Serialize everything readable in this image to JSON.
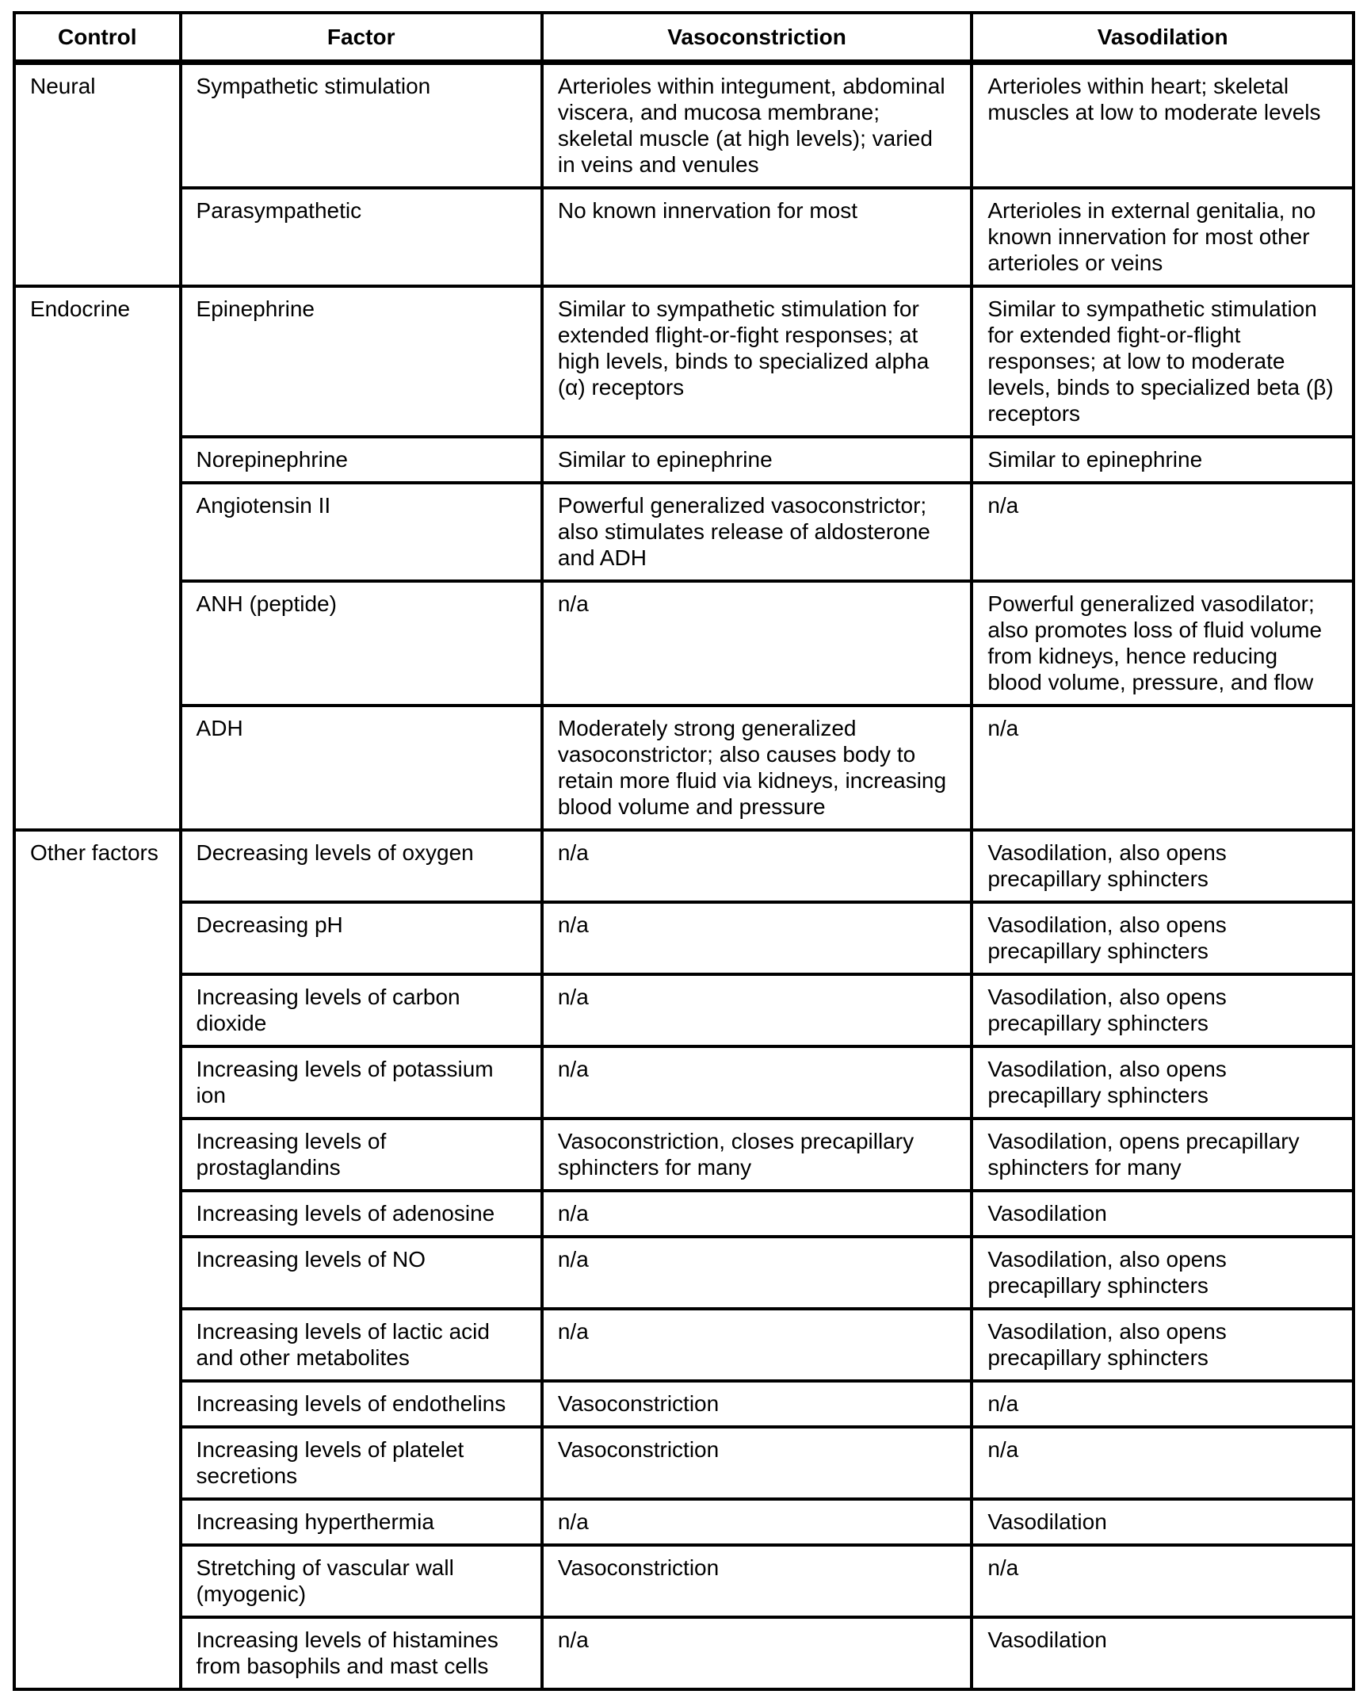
{
  "table": {
    "headers": [
      "Control",
      "Factor",
      "Vasoconstriction",
      "Vasodilation"
    ],
    "groups": [
      {
        "control": "Neural",
        "rows": [
          {
            "factor": "Sympathetic stimulation",
            "vasoconstriction": "Arterioles within integument, abdominal viscera, and mucosa membrane; skeletal muscle (at high levels); varied in veins and venules",
            "vasodilation": "Arterioles within heart; skeletal muscles at low to moderate levels"
          },
          {
            "factor": "Parasympathetic",
            "vasoconstriction": "No known innervation for most",
            "vasodilation": "Arterioles in external genitalia, no known innervation for most other arterioles or veins"
          }
        ]
      },
      {
        "control": "Endocrine",
        "rows": [
          {
            "factor": "Epinephrine",
            "vasoconstriction": "Similar to sympathetic stimulation for extended flight-or-fight responses; at high levels, binds to specialized alpha (α) receptors",
            "vasodilation": "Similar to sympathetic stimulation for extended fight-or-flight responses; at low to moderate levels, binds to specialized beta (β) receptors"
          },
          {
            "factor": "Norepinephrine",
            "vasoconstriction": "Similar to epinephrine",
            "vasodilation": "Similar to epinephrine"
          },
          {
            "factor": "Angiotensin II",
            "vasoconstriction": "Powerful generalized vasoconstrictor; also stimulates release of aldosterone and ADH",
            "vasodilation": "n/a"
          },
          {
            "factor": "ANH (peptide)",
            "vasoconstriction": "n/a",
            "vasodilation": "Powerful generalized vasodilator; also promotes loss of fluid volume from kidneys, hence reducing blood volume, pressure, and flow"
          },
          {
            "factor": "ADH",
            "vasoconstriction": "Moderately strong generalized vasoconstrictor; also causes body to retain more fluid via kidneys, increasing blood volume and pressure",
            "vasodilation": "n/a"
          }
        ]
      },
      {
        "control": "Other factors",
        "rows": [
          {
            "factor": "Decreasing levels of oxygen",
            "vasoconstriction": "n/a",
            "vasodilation": "Vasodilation, also opens precapillary sphincters"
          },
          {
            "factor": "Decreasing pH",
            "vasoconstriction": "n/a",
            "vasodilation": "Vasodilation, also opens precapillary sphincters"
          },
          {
            "factor": "Increasing levels of carbon dioxide",
            "vasoconstriction": "n/a",
            "vasodilation": "Vasodilation, also opens precapillary sphincters"
          },
          {
            "factor": "Increasing levels of potassium ion",
            "vasoconstriction": "n/a",
            "vasodilation": "Vasodilation, also opens precapillary sphincters"
          },
          {
            "factor": "Increasing levels of prostaglandins",
            "vasoconstriction": "Vasoconstriction, closes precapillary sphincters for many",
            "vasodilation": "Vasodilation, opens precapillary sphincters for many"
          },
          {
            "factor": "Increasing levels of adenosine",
            "vasoconstriction": "n/a",
            "vasodilation": "Vasodilation"
          },
          {
            "factor": "Increasing levels of NO",
            "vasoconstriction": "n/a",
            "vasodilation": "Vasodilation, also opens precapillary sphincters"
          },
          {
            "factor": "Increasing levels of lactic acid and other metabolites",
            "vasoconstriction": "n/a",
            "vasodilation": "Vasodilation, also opens precapillary sphincters"
          },
          {
            "factor": "Increasing levels of endothelins",
            "vasoconstriction": "Vasoconstriction",
            "vasodilation": "n/a"
          },
          {
            "factor": "Increasing levels of platelet secretions",
            "vasoconstriction": "Vasoconstriction",
            "vasodilation": "n/a"
          },
          {
            "factor": "Increasing hyperthermia",
            "vasoconstriction": "n/a",
            "vasodilation": "Vasodilation"
          },
          {
            "factor": "Stretching of vascular wall (myogenic)",
            "vasoconstriction": "Vasoconstriction",
            "vasodilation": "n/a"
          },
          {
            "factor": "Increasing levels of histamines from basophils and mast cells",
            "vasoconstriction": "n/a",
            "vasodilation": "Vasodilation"
          }
        ]
      }
    ],
    "colors": {
      "border": "#000000",
      "text": "#000000",
      "background": "#ffffff"
    }
  }
}
